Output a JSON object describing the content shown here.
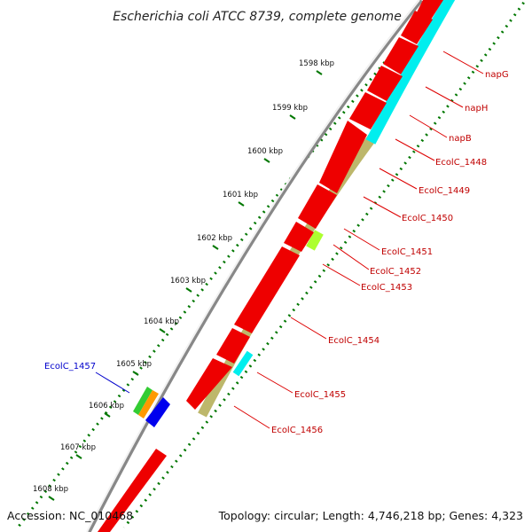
{
  "title": "Escherichia coli ATCC 8739, complete genome",
  "footer": {
    "accession": "Accession: NC_010468",
    "summary": "Topology: circular; Length: 4,746,218 bp; Genes: 4,323"
  },
  "colors": {
    "forward_gene": "#ee0000",
    "reverse_gene_cyan": "#00eeee",
    "reverse_gene_khaki": "#bdb76b",
    "reverse_gene_lime": "#adff2f",
    "backbone": "#888888",
    "tick": "#007700",
    "label_red": "#c00000",
    "label_blue": "#0000cc"
  },
  "ticks": [
    {
      "label": "1598 kbp"
    },
    {
      "label": "1599 kbp"
    },
    {
      "label": "1600 kbp"
    },
    {
      "label": "1601 kbp"
    },
    {
      "label": "1602 kbp"
    },
    {
      "label": "1603 kbp"
    },
    {
      "label": "1604 kbp"
    },
    {
      "label": "1605 kbp"
    },
    {
      "label": "1606 kbp"
    },
    {
      "label": "1607 kbp"
    },
    {
      "label": "1608 kbp"
    }
  ],
  "gene_labels": [
    {
      "name": "napG"
    },
    {
      "name": "napH"
    },
    {
      "name": "napB"
    },
    {
      "name": "EcolC_1448"
    },
    {
      "name": "EcolC_1449"
    },
    {
      "name": "EcolC_1450"
    },
    {
      "name": "EcolC_1451"
    },
    {
      "name": "EcolC_1452"
    },
    {
      "name": "EcolC_1453"
    },
    {
      "name": "EcolC_1454"
    },
    {
      "name": "EcolC_1455"
    },
    {
      "name": "EcolC_1456"
    }
  ],
  "left_label": {
    "name": "EcolC_1457"
  }
}
